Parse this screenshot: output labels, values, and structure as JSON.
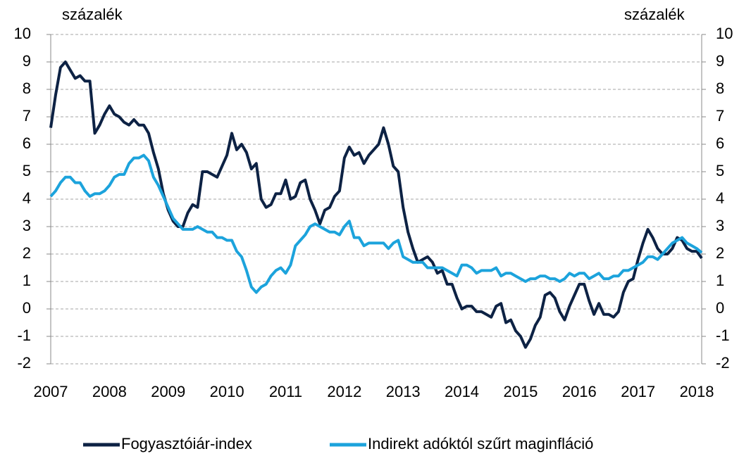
{
  "chart_data": {
    "type": "line",
    "y_unit_left": "százalék",
    "y_unit_right": "százalék",
    "categories": [
      "2007",
      null,
      null,
      null,
      null,
      null,
      null,
      null,
      null,
      null,
      null,
      null,
      "2008",
      null,
      null,
      null,
      null,
      null,
      null,
      null,
      null,
      null,
      null,
      null,
      "2009",
      null,
      null,
      null,
      null,
      null,
      null,
      null,
      null,
      null,
      null,
      null,
      "2010",
      null,
      null,
      null,
      null,
      null,
      null,
      null,
      null,
      null,
      null,
      null,
      "2011",
      null,
      null,
      null,
      null,
      null,
      null,
      null,
      null,
      null,
      null,
      null,
      "2012",
      null,
      null,
      null,
      null,
      null,
      null,
      null,
      null,
      null,
      null,
      null,
      "2013",
      null,
      null,
      null,
      null,
      null,
      null,
      null,
      null,
      null,
      null,
      null,
      "2014",
      null,
      null,
      null,
      null,
      null,
      null,
      null,
      null,
      null,
      null,
      null,
      "2015",
      null,
      null,
      null,
      null,
      null,
      null,
      null,
      null,
      null,
      null,
      null,
      "2016",
      null,
      null,
      null,
      null,
      null,
      null,
      null,
      null,
      null,
      null,
      null,
      "2017",
      null,
      null,
      null,
      null,
      null,
      null,
      null,
      null,
      null,
      null,
      null,
      "2018",
      null
    ],
    "series": [
      {
        "name": "Fogyasztóiár-index",
        "color": "#0d2244",
        "values": [
          6.6,
          7.8,
          8.8,
          9.0,
          8.7,
          8.4,
          8.5,
          8.3,
          8.3,
          6.4,
          6.7,
          7.1,
          7.4,
          7.1,
          7.0,
          6.8,
          6.7,
          6.9,
          6.7,
          6.7,
          6.4,
          5.7,
          5.1,
          4.2,
          3.6,
          3.2,
          3.0,
          3.0,
          3.5,
          3.8,
          3.7,
          5.0,
          5.0,
          4.9,
          4.8,
          5.2,
          5.6,
          6.4,
          5.8,
          6.0,
          5.7,
          5.1,
          5.3,
          4.0,
          3.7,
          3.8,
          4.2,
          4.2,
          4.7,
          4.0,
          4.1,
          4.6,
          4.7,
          4.0,
          3.6,
          3.1,
          3.6,
          3.7,
          4.1,
          4.3,
          5.5,
          5.9,
          5.6,
          5.7,
          5.3,
          5.6,
          5.8,
          6.0,
          6.6,
          6.0,
          5.2,
          5.0,
          3.7,
          2.8,
          2.2,
          1.7,
          1.8,
          1.9,
          1.7,
          1.3,
          1.4,
          0.9,
          0.9,
          0.4,
          0.0,
          0.1,
          0.1,
          -0.1,
          -0.1,
          -0.2,
          -0.3,
          0.1,
          0.2,
          -0.5,
          -0.4,
          -0.8,
          -1.0,
          -1.4,
          -1.1,
          -0.6,
          -0.3,
          0.5,
          0.6,
          0.4,
          -0.1,
          -0.4,
          0.1,
          0.5,
          0.9,
          0.9,
          0.3,
          -0.2,
          0.2,
          -0.2,
          -0.2,
          -0.3,
          -0.1,
          0.6,
          1.0,
          1.1,
          1.8,
          2.4,
          2.9,
          2.6,
          2.2,
          2.0,
          2.0,
          2.2,
          2.6,
          2.5,
          2.2,
          2.1,
          2.1,
          1.85
        ]
      },
      {
        "name": "Indirekt adóktól szűrt maginfláció",
        "color": "#1ca3dc",
        "values": [
          4.1,
          4.3,
          4.6,
          4.8,
          4.8,
          4.6,
          4.6,
          4.3,
          4.1,
          4.2,
          4.2,
          4.3,
          4.5,
          4.8,
          4.9,
          4.9,
          5.3,
          5.5,
          5.5,
          5.6,
          5.4,
          4.8,
          4.5,
          4.1,
          3.7,
          3.3,
          3.1,
          2.9,
          2.9,
          2.9,
          3.0,
          2.9,
          2.8,
          2.8,
          2.6,
          2.6,
          2.5,
          2.5,
          2.1,
          1.9,
          1.4,
          0.8,
          0.6,
          0.8,
          0.9,
          1.2,
          1.4,
          1.5,
          1.3,
          1.6,
          2.3,
          2.5,
          2.7,
          3.0,
          3.1,
          3.0,
          2.9,
          2.8,
          2.8,
          2.7,
          3.0,
          3.2,
          2.6,
          2.6,
          2.3,
          2.4,
          2.4,
          2.4,
          2.4,
          2.2,
          2.4,
          2.5,
          1.9,
          1.8,
          1.7,
          1.7,
          1.7,
          1.5,
          1.5,
          1.5,
          1.5,
          1.4,
          1.3,
          1.2,
          1.6,
          1.6,
          1.5,
          1.3,
          1.4,
          1.4,
          1.4,
          1.5,
          1.2,
          1.3,
          1.3,
          1.2,
          1.1,
          1.0,
          1.1,
          1.1,
          1.2,
          1.2,
          1.1,
          1.1,
          1.0,
          1.1,
          1.3,
          1.2,
          1.3,
          1.3,
          1.1,
          1.2,
          1.3,
          1.1,
          1.1,
          1.2,
          1.2,
          1.4,
          1.4,
          1.5,
          1.6,
          1.7,
          1.9,
          1.9,
          1.8,
          2.0,
          2.2,
          2.4,
          2.5,
          2.6,
          2.4,
          2.3,
          2.2,
          2.05
        ]
      }
    ],
    "ylim": [
      -2,
      10
    ],
    "yticks": [
      -2,
      -1,
      0,
      1,
      2,
      3,
      4,
      5,
      6,
      7,
      8,
      9,
      10
    ],
    "y2lim": [
      -2,
      10
    ],
    "y2ticks": [
      -2,
      -1,
      0,
      1,
      2,
      3,
      4,
      5,
      6,
      7,
      8,
      9,
      10
    ],
    "grid": true,
    "legend": "bottom"
  }
}
